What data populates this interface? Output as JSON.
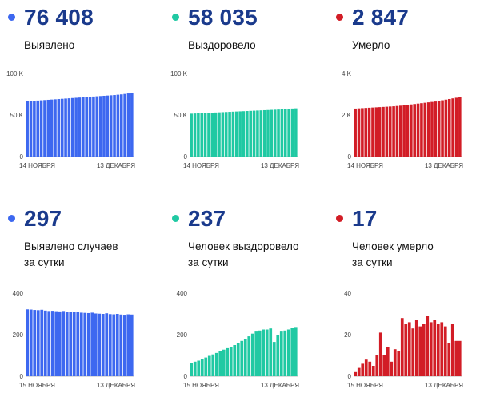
{
  "colors": {
    "blue": "#3d68f0",
    "green": "#20c9a3",
    "red": "#d21d26",
    "number": "#1a3a8c"
  },
  "panels": [
    {
      "id": "detected-total",
      "color": "#3d68f0",
      "value": "76 408",
      "label": [
        "Выявлено"
      ]
    },
    {
      "id": "recovered-total",
      "color": "#20c9a3",
      "value": "58 035",
      "label": [
        "Выздоровело"
      ]
    },
    {
      "id": "deaths-total",
      "color": "#d21d26",
      "value": "2 847",
      "label": [
        "Умерло"
      ]
    },
    {
      "id": "detected-daily",
      "color": "#3d68f0",
      "value": "297",
      "label": [
        "Выявлено случаев",
        "за сутки"
      ]
    },
    {
      "id": "recovered-daily",
      "color": "#20c9a3",
      "value": "237",
      "label": [
        "Человек выздоровело",
        "за сутки"
      ]
    },
    {
      "id": "deaths-daily",
      "color": "#d21d26",
      "value": "17",
      "label": [
        "Человек умерло",
        "за сутки"
      ]
    }
  ],
  "chart_data": [
    {
      "type": "bar",
      "ylim": [
        0,
        100000
      ],
      "ytick_labels": [
        "0",
        "50 K",
        "100 K"
      ],
      "yticks": [
        0,
        50000,
        100000
      ],
      "x_start_label": "14 НОЯБРЯ",
      "x_end_label": "13 ДЕКАБРЯ",
      "color": "#3d68f0",
      "values": [
        66500,
        66800,
        67100,
        67400,
        67700,
        68000,
        68300,
        68600,
        68900,
        69200,
        69500,
        69800,
        70100,
        70400,
        70700,
        71000,
        71300,
        71600,
        71900,
        72200,
        72500,
        72800,
        73100,
        73400,
        73700,
        74000,
        74400,
        74800,
        75300,
        75900,
        76408
      ]
    },
    {
      "type": "bar",
      "ylim": [
        0,
        100000
      ],
      "ytick_labels": [
        "0",
        "50 K",
        "100 K"
      ],
      "yticks": [
        0,
        50000,
        100000
      ],
      "x_start_label": "14 НОЯБРЯ",
      "x_end_label": "13 ДЕКАБРЯ",
      "color": "#20c9a3",
      "values": [
        51600,
        51800,
        52000,
        52200,
        52400,
        52600,
        52800,
        53000,
        53200,
        53400,
        53600,
        53800,
        54000,
        54200,
        54400,
        54600,
        54800,
        55000,
        55200,
        55400,
        55600,
        55800,
        56000,
        56200,
        56400,
        56600,
        56900,
        57200,
        57500,
        57800,
        58035
      ]
    },
    {
      "type": "bar",
      "ylim": [
        0,
        4000
      ],
      "ytick_labels": [
        "0",
        "2 K",
        "4 K"
      ],
      "yticks": [
        0,
        2000,
        4000
      ],
      "x_start_label": "14 НОЯБРЯ",
      "x_end_label": "13 ДЕКАБРЯ",
      "color": "#d21d26",
      "values": [
        2310,
        2320,
        2330,
        2340,
        2350,
        2360,
        2370,
        2380,
        2390,
        2400,
        2410,
        2420,
        2435,
        2450,
        2470,
        2490,
        2510,
        2530,
        2550,
        2570,
        2590,
        2610,
        2630,
        2650,
        2680,
        2710,
        2740,
        2770,
        2800,
        2830,
        2847
      ]
    },
    {
      "type": "bar",
      "ylim": [
        0,
        400
      ],
      "ytick_labels": [
        "0",
        "200",
        "400"
      ],
      "yticks": [
        0,
        200,
        400
      ],
      "x_start_label": "15 НОЯБРЯ",
      "x_end_label": "13 ДЕКАБРЯ",
      "color": "#3d68f0",
      "values": [
        322,
        321,
        319,
        318,
        320,
        316,
        314,
        315,
        313,
        312,
        314,
        311,
        309,
        308,
        310,
        306,
        305,
        304,
        306,
        302,
        301,
        300,
        303,
        299,
        298,
        300,
        297,
        296,
        298,
        297
      ]
    },
    {
      "type": "bar",
      "ylim": [
        0,
        400
      ],
      "ytick_labels": [
        "0",
        "200",
        "400"
      ],
      "yticks": [
        0,
        200,
        400
      ],
      "x_start_label": "15 НОЯБРЯ",
      "x_end_label": "13 ДЕКАБРЯ",
      "color": "#20c9a3",
      "values": [
        65,
        70,
        75,
        82,
        90,
        98,
        105,
        112,
        120,
        128,
        135,
        142,
        150,
        160,
        170,
        180,
        192,
        205,
        215,
        220,
        225,
        225,
        230,
        165,
        200,
        215,
        220,
        225,
        232,
        237
      ]
    },
    {
      "type": "bar",
      "ylim": [
        0,
        40
      ],
      "ytick_labels": [
        "0",
        "20",
        "40"
      ],
      "yticks": [
        0,
        20,
        40
      ],
      "x_start_label": "15 НОЯБРЯ",
      "x_end_label": "13 ДЕКАБРЯ",
      "color": "#d21d26",
      "values": [
        2,
        4,
        6,
        8,
        7,
        5,
        10,
        21,
        10,
        14,
        7,
        13,
        12,
        28,
        25,
        26,
        23,
        27,
        24,
        25,
        29,
        26,
        27,
        25,
        26,
        24,
        16,
        25,
        17,
        17
      ]
    }
  ]
}
